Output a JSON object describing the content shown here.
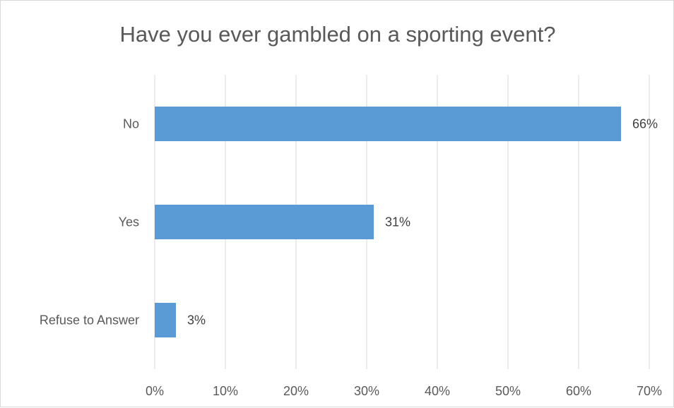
{
  "chart_data": {
    "type": "bar",
    "orientation": "horizontal",
    "title": "Have you ever gambled on a sporting event?",
    "categories": [
      "No",
      "Yes",
      "Refuse to Answer"
    ],
    "values": [
      66,
      31,
      3
    ],
    "data_labels": [
      "66%",
      "31%",
      "3%"
    ],
    "xlim": [
      0,
      70
    ],
    "x_ticks": [
      "0%",
      "10%",
      "20%",
      "30%",
      "40%",
      "50%",
      "60%",
      "70%"
    ],
    "grid": true,
    "legend": "none",
    "bar_color": "#5b9bd5",
    "grid_color": "#d9d9d9"
  }
}
